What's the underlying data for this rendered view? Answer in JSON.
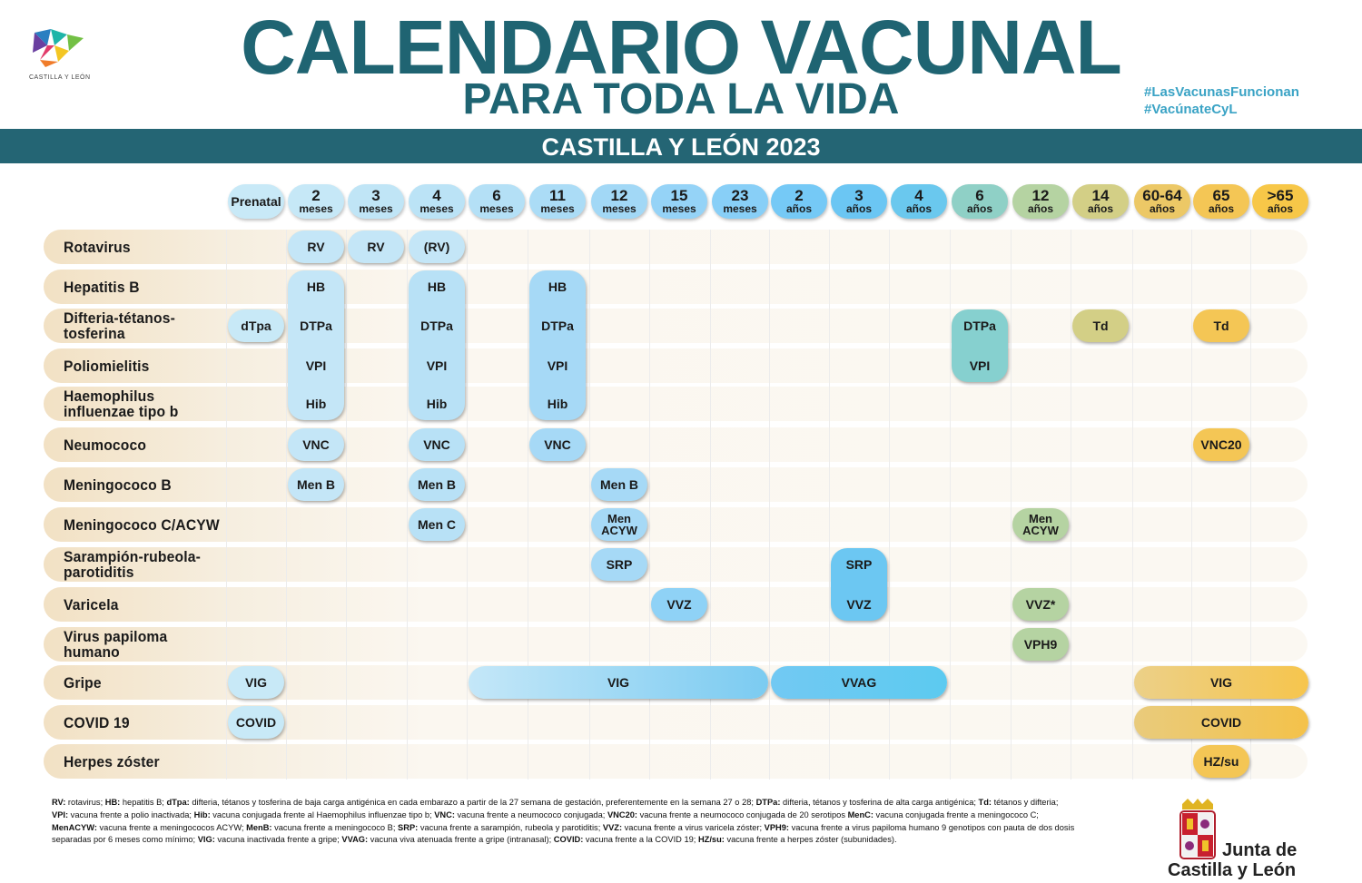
{
  "header": {
    "title": "CALENDARIO VACUNAL",
    "subtitle": "PARA TODA LA VIDA",
    "hashtags": [
      "#LasVacunasFuncionan",
      "#VacúnateCyL"
    ],
    "logo_caption": "CASTILLA Y LEÓN",
    "band": "CASTILLA Y LEÓN 2023"
  },
  "columns": [
    {
      "n": "Prenatal",
      "u": "",
      "color": "#c8e9f7"
    },
    {
      "n": "2",
      "u": "meses",
      "color": "#c6e8f7"
    },
    {
      "n": "3",
      "u": "meses",
      "color": "#c0e5f6"
    },
    {
      "n": "4",
      "u": "meses",
      "color": "#bbe3f6"
    },
    {
      "n": "6",
      "u": "meses",
      "color": "#b4e0f6"
    },
    {
      "n": "11",
      "u": "meses",
      "color": "#abdcf6"
    },
    {
      "n": "12",
      "u": "meses",
      "color": "#a2d8f6"
    },
    {
      "n": "15",
      "u": "meses",
      "color": "#95d3f7"
    },
    {
      "n": "23",
      "u": "meses",
      "color": "#88cff7"
    },
    {
      "n": "2",
      "u": "años",
      "color": "#75c9f6"
    },
    {
      "n": "3",
      "u": "años",
      "color": "#6bc6f3"
    },
    {
      "n": "4",
      "u": "años",
      "color": "#6ac8ee"
    },
    {
      "n": "6",
      "u": "años",
      "color": "#8fd0c6"
    },
    {
      "n": "12",
      "u": "años",
      "color": "#b5d3a2"
    },
    {
      "n": "14",
      "u": "años",
      "color": "#d3cf86"
    },
    {
      "n": "60-64",
      "u": "años",
      "color": "#ecc866"
    },
    {
      "n": "65",
      "u": "años",
      "color": "#f4c655"
    },
    {
      "n": ">65",
      "u": "años",
      "color": "#f7c748"
    }
  ],
  "rows": [
    "Rotavirus",
    "Hepatitis B",
    "Difteria-tétanos-\ntosferina",
    "Poliomielitis",
    "Haemophilus\ninfluenzae tipo b",
    "Neumococo",
    "Meningococo B",
    "Meningococo C/ACYW",
    "Sarampión-rubeola-\nparotiditis",
    "Varicela",
    "Virus papiloma\nhumano",
    "Gripe",
    "COVID 19",
    "Herpes zóster"
  ],
  "cells": {
    "rv": "RV",
    "rv_paren": "(RV)",
    "hb": "HB",
    "dtpa_low": "dTpa",
    "dtpa": "DTPa",
    "vpi": "VPI",
    "hib": "Hib",
    "td": "Td",
    "vnc": "VNC",
    "vnc20": "VNC20",
    "menb": "Men B",
    "menc": "Men C",
    "menacyw": "Men\nACYW",
    "srp": "SRP",
    "vvz": "VVZ",
    "vvz_star": "VVZ*",
    "vph9": "VPH9",
    "vig": "VIG",
    "vvag": "VVAG",
    "covid": "COVID",
    "hzsu": "HZ/su"
  },
  "legend": [
    [
      [
        "RV:",
        " rotavirus; "
      ],
      [
        "HB:",
        " hepatitis B; "
      ],
      [
        "dTpa:",
        " difteria, tétanos y tosferina de baja carga antigénica en cada embarazo a partir de la 27 semana de gestación, preferentemente en la semana 27 o 28; "
      ],
      [
        "DTPa:",
        " difteria, tétanos y tosferina de alta carga antigénica; "
      ],
      [
        "Td:",
        " tétanos y difteria;"
      ]
    ],
    [
      [
        "VPI:",
        " vacuna frente a polio inactivada; "
      ],
      [
        "Hib:",
        " vacuna conjugada frente al Haemophilus influenzae tipo b; "
      ],
      [
        "VNC:",
        " vacuna frente a neumococo conjugada; "
      ],
      [
        "VNC20:",
        " vacuna frente a neumococo conjugada de 20 serotipos "
      ],
      [
        "MenC:",
        " vacuna conjugada frente a meningococo C;"
      ]
    ],
    [
      [
        "MenACYW:",
        " vacuna frente a meningococos ACYW; "
      ],
      [
        "MenB:",
        " vacuna frente a meningococo B; "
      ],
      [
        "SRP:",
        " vacuna frente a sarampión, rubeola y parotiditis; "
      ],
      [
        "VVZ:",
        " vacuna frente a virus varicela zóster; "
      ],
      [
        "VPH9:",
        " vacuna frente a virus papiloma humano 9 genotipos con pauta de dos dosis"
      ]
    ],
    [
      [
        "",
        "separadas por 6 meses como mínimo; "
      ],
      [
        "VIG:",
        " vacuna inactivada frente a gripe; "
      ],
      [
        "VVAG:",
        " vacuna viva atenuada frente a gripe (intranasal); "
      ],
      [
        "COVID:",
        " vacuna frente a la COVID 19; "
      ],
      [
        "HZ/su:",
        " vacuna frente a herpes zóster (subunidades)."
      ]
    ]
  ],
  "footer": {
    "junta_line1": "Junta de",
    "junta_line2": "Castilla y León"
  }
}
